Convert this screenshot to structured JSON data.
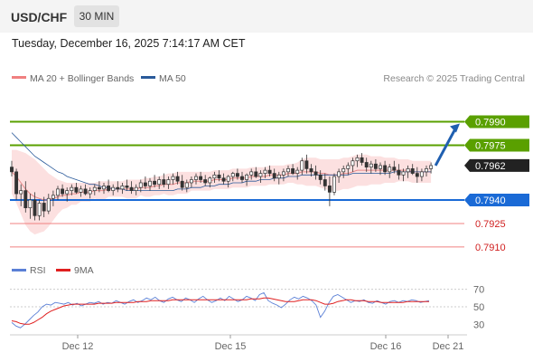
{
  "header": {
    "symbol": "USD/CHF",
    "timeframe": "30 MIN",
    "datetime": "Tuesday, December 16, 2025 7:14:17 AM CET"
  },
  "legend": [
    {
      "name": "MA 20 + Bollinger Bands",
      "color": "#f08080"
    },
    {
      "name": "MA 50",
      "color": "#2a5a9a"
    }
  ],
  "attribution": "Research © 2025 Trading Central",
  "rsi_legend": [
    {
      "name": "RSI",
      "color": "#5b80d6"
    },
    {
      "name": "9MA",
      "color": "#e02020"
    }
  ],
  "colors": {
    "green": "#5aa000",
    "blue": "#1a6ad6",
    "red_level": "#f08080",
    "last": "#222222",
    "arrow": "#1f5fb0"
  },
  "chart_data": [
    {
      "type": "candlestick",
      "title": "",
      "ylim": [
        0.7903,
        0.8003
      ],
      "levels": [
        {
          "value": 0.799,
          "label": "0.7990",
          "style": "green-line-tag"
        },
        {
          "value": 0.7975,
          "label": "0.7975",
          "style": "green-line-tag"
        },
        {
          "value": 0.7962,
          "label": "0.7962",
          "style": "last-price-tag"
        },
        {
          "value": 0.794,
          "label": "0.7940",
          "style": "blue-line-tag"
        },
        {
          "value": 0.7925,
          "label": "0.7925",
          "style": "red-line-text"
        },
        {
          "value": 0.791,
          "label": "0.7910",
          "style": "red-line-text"
        }
      ],
      "candles": [
        [
          0.7961,
          0.7965,
          0.7955,
          0.7958
        ],
        [
          0.7958,
          0.796,
          0.794,
          0.7944
        ],
        [
          0.7944,
          0.795,
          0.7936,
          0.7946
        ],
        [
          0.7946,
          0.7952,
          0.7932,
          0.7935
        ],
        [
          0.7935,
          0.7944,
          0.7928,
          0.794
        ],
        [
          0.794,
          0.7945,
          0.7927,
          0.793
        ],
        [
          0.793,
          0.794,
          0.7927,
          0.7938
        ],
        [
          0.7938,
          0.7942,
          0.7929,
          0.7933
        ],
        [
          0.7933,
          0.7944,
          0.7931,
          0.7941
        ],
        [
          0.7941,
          0.7946,
          0.7936,
          0.7943
        ],
        [
          0.7943,
          0.7949,
          0.794,
          0.7947
        ],
        [
          0.7947,
          0.795,
          0.7942,
          0.7944
        ],
        [
          0.7944,
          0.7948,
          0.7939,
          0.7946
        ],
        [
          0.7946,
          0.795,
          0.7943,
          0.7948
        ],
        [
          0.7948,
          0.7951,
          0.7944,
          0.7945
        ],
        [
          0.7945,
          0.7949,
          0.7942,
          0.7947
        ],
        [
          0.7947,
          0.795,
          0.7943,
          0.7944
        ],
        [
          0.7944,
          0.7948,
          0.7941,
          0.7946
        ],
        [
          0.7946,
          0.795,
          0.7943,
          0.7948
        ],
        [
          0.7948,
          0.7952,
          0.7945,
          0.7947
        ],
        [
          0.7947,
          0.7951,
          0.7944,
          0.7949
        ],
        [
          0.7949,
          0.7953,
          0.7945,
          0.7946
        ],
        [
          0.7946,
          0.795,
          0.7943,
          0.7948
        ],
        [
          0.7948,
          0.7952,
          0.7945,
          0.7947
        ],
        [
          0.7947,
          0.7951,
          0.7944,
          0.7949
        ],
        [
          0.7949,
          0.7953,
          0.7946,
          0.7948
        ],
        [
          0.7948,
          0.7952,
          0.7944,
          0.7946
        ],
        [
          0.7946,
          0.795,
          0.7943,
          0.7948
        ],
        [
          0.7948,
          0.7953,
          0.7945,
          0.7951
        ],
        [
          0.7951,
          0.7955,
          0.7947,
          0.7949
        ],
        [
          0.7949,
          0.7954,
          0.7946,
          0.7952
        ],
        [
          0.7952,
          0.7956,
          0.7948,
          0.795
        ],
        [
          0.795,
          0.7955,
          0.7947,
          0.7953
        ],
        [
          0.7953,
          0.7957,
          0.7948,
          0.795
        ],
        [
          0.795,
          0.7955,
          0.7947,
          0.7953
        ],
        [
          0.7953,
          0.7957,
          0.795,
          0.7955
        ],
        [
          0.7955,
          0.7958,
          0.795,
          0.7952
        ],
        [
          0.7952,
          0.7956,
          0.7946,
          0.7948
        ],
        [
          0.7948,
          0.7953,
          0.7945,
          0.7951
        ],
        [
          0.7951,
          0.7955,
          0.7948,
          0.7953
        ],
        [
          0.7953,
          0.7957,
          0.795,
          0.7955
        ],
        [
          0.7955,
          0.7958,
          0.7951,
          0.7953
        ],
        [
          0.7953,
          0.7956,
          0.7949,
          0.7951
        ],
        [
          0.7951,
          0.7955,
          0.7948,
          0.7954
        ],
        [
          0.7954,
          0.7958,
          0.7951,
          0.7956
        ],
        [
          0.7956,
          0.7959,
          0.7952,
          0.7954
        ],
        [
          0.7954,
          0.7957,
          0.795,
          0.7952
        ],
        [
          0.7952,
          0.7956,
          0.7948,
          0.7955
        ],
        [
          0.7955,
          0.7958,
          0.7952,
          0.7957
        ],
        [
          0.7957,
          0.796,
          0.7953,
          0.7955
        ],
        [
          0.7955,
          0.7958,
          0.7951,
          0.7953
        ],
        [
          0.7953,
          0.7957,
          0.7949,
          0.7956
        ],
        [
          0.7956,
          0.796,
          0.7953,
          0.7958
        ],
        [
          0.7958,
          0.7961,
          0.7954,
          0.7955
        ],
        [
          0.7955,
          0.7959,
          0.7951,
          0.7957
        ],
        [
          0.7957,
          0.7961,
          0.7954,
          0.7959
        ],
        [
          0.7959,
          0.7962,
          0.7955,
          0.7957
        ],
        [
          0.7957,
          0.796,
          0.7952,
          0.7954
        ],
        [
          0.7954,
          0.7958,
          0.795,
          0.7956
        ],
        [
          0.7956,
          0.796,
          0.7952,
          0.7958
        ],
        [
          0.7958,
          0.7962,
          0.7955,
          0.796
        ],
        [
          0.796,
          0.7963,
          0.7956,
          0.7957
        ],
        [
          0.7957,
          0.7961,
          0.7953,
          0.7959
        ],
        [
          0.7959,
          0.7967,
          0.7956,
          0.7965
        ],
        [
          0.7965,
          0.7969,
          0.7957,
          0.796
        ],
        [
          0.796,
          0.7963,
          0.7955,
          0.7958
        ],
        [
          0.7958,
          0.7962,
          0.7953,
          0.7956
        ],
        [
          0.7956,
          0.7959,
          0.795,
          0.7953
        ],
        [
          0.7953,
          0.7957,
          0.7946,
          0.7949
        ],
        [
          0.7949,
          0.7955,
          0.7936,
          0.7945
        ],
        [
          0.7945,
          0.7957,
          0.7943,
          0.7955
        ],
        [
          0.7955,
          0.796,
          0.7951,
          0.7958
        ],
        [
          0.7958,
          0.7962,
          0.7954,
          0.796
        ],
        [
          0.796,
          0.7964,
          0.7956,
          0.7962
        ],
        [
          0.7962,
          0.7967,
          0.7958,
          0.7965
        ],
        [
          0.7965,
          0.7969,
          0.7961,
          0.7967
        ],
        [
          0.7967,
          0.797,
          0.7962,
          0.7964
        ],
        [
          0.7964,
          0.7967,
          0.7958,
          0.7961
        ],
        [
          0.7961,
          0.7965,
          0.7957,
          0.7963
        ],
        [
          0.7963,
          0.7966,
          0.7958,
          0.796
        ],
        [
          0.796,
          0.7964,
          0.7956,
          0.7962
        ],
        [
          0.7962,
          0.7965,
          0.7956,
          0.7958
        ],
        [
          0.7958,
          0.7963,
          0.7954,
          0.7961
        ],
        [
          0.7961,
          0.7965,
          0.7957,
          0.7959
        ],
        [
          0.7959,
          0.7963,
          0.7953,
          0.7956
        ],
        [
          0.7956,
          0.796,
          0.7952,
          0.7958
        ],
        [
          0.7958,
          0.7962,
          0.7954,
          0.796
        ],
        [
          0.796,
          0.7963,
          0.7956,
          0.7957
        ],
        [
          0.7957,
          0.7961,
          0.7951,
          0.7955
        ],
        [
          0.7955,
          0.796,
          0.7952,
          0.7958
        ],
        [
          0.7958,
          0.7962,
          0.7955,
          0.796
        ],
        [
          0.796,
          0.7964,
          0.7957,
          0.7962
        ]
      ],
      "ma20": [
        0.7958,
        0.7955,
        0.7951,
        0.7947,
        0.7944,
        0.7942,
        0.7941,
        0.794,
        0.794,
        0.7941,
        0.7942,
        0.7943,
        0.7943,
        0.7944,
        0.7944,
        0.7945,
        0.7945,
        0.7945,
        0.7946,
        0.7946,
        0.7946,
        0.7947,
        0.7947,
        0.7947,
        0.7947,
        0.7947,
        0.7947,
        0.7947,
        0.7948,
        0.7948,
        0.7948,
        0.7949,
        0.7949,
        0.795,
        0.795,
        0.795,
        0.7951,
        0.7951,
        0.7951,
        0.7952,
        0.7952,
        0.7952,
        0.7952,
        0.7952,
        0.7953,
        0.7953,
        0.7953,
        0.7953,
        0.7954,
        0.7954,
        0.7954,
        0.7954,
        0.7955,
        0.7955,
        0.7955,
        0.7955,
        0.7956,
        0.7956,
        0.7956,
        0.7956,
        0.7957,
        0.7957,
        0.7957,
        0.7958,
        0.7958,
        0.7958,
        0.7958,
        0.7957,
        0.7957,
        0.7956,
        0.7956,
        0.7956,
        0.7957,
        0.7957,
        0.7958,
        0.7959,
        0.7959,
        0.7959,
        0.7959,
        0.7959,
        0.7959,
        0.7959,
        0.7959,
        0.7959,
        0.7959,
        0.7959,
        0.7959,
        0.7958,
        0.7958,
        0.7958,
        0.7958,
        0.7958
      ],
      "bb_upper": [
        0.7972,
        0.7972,
        0.7971,
        0.797,
        0.7968,
        0.7966,
        0.7963,
        0.796,
        0.7957,
        0.7955,
        0.7953,
        0.7952,
        0.7951,
        0.7951,
        0.7951,
        0.7951,
        0.7951,
        0.7951,
        0.7951,
        0.7952,
        0.7952,
        0.7952,
        0.7952,
        0.7952,
        0.7952,
        0.7953,
        0.7953,
        0.7953,
        0.7953,
        0.7954,
        0.7954,
        0.7955,
        0.7955,
        0.7956,
        0.7957,
        0.7957,
        0.7958,
        0.7958,
        0.7958,
        0.7958,
        0.7958,
        0.7958,
        0.7958,
        0.7958,
        0.7959,
        0.7959,
        0.7959,
        0.7959,
        0.796,
        0.796,
        0.796,
        0.796,
        0.7961,
        0.7961,
        0.7961,
        0.7961,
        0.7962,
        0.7962,
        0.7962,
        0.7962,
        0.7963,
        0.7963,
        0.7964,
        0.7966,
        0.7967,
        0.7967,
        0.7967,
        0.7966,
        0.7966,
        0.7966,
        0.7966,
        0.7966,
        0.7967,
        0.7967,
        0.7968,
        0.7969,
        0.7969,
        0.7969,
        0.7968,
        0.7968,
        0.7968,
        0.7967,
        0.7967,
        0.7967,
        0.7966,
        0.7966,
        0.7966,
        0.7965,
        0.7965,
        0.7965,
        0.7965,
        0.7965
      ],
      "bb_lower": [
        0.7944,
        0.7938,
        0.7931,
        0.7924,
        0.792,
        0.7918,
        0.7919,
        0.792,
        0.7923,
        0.7927,
        0.7931,
        0.7934,
        0.7935,
        0.7937,
        0.7937,
        0.7939,
        0.7939,
        0.7939,
        0.7941,
        0.794,
        0.794,
        0.7942,
        0.7942,
        0.7942,
        0.7942,
        0.7941,
        0.7941,
        0.7941,
        0.7943,
        0.7942,
        0.7942,
        0.7943,
        0.7943,
        0.7944,
        0.7943,
        0.7943,
        0.7944,
        0.7944,
        0.7944,
        0.7946,
        0.7946,
        0.7946,
        0.7946,
        0.7946,
        0.7947,
        0.7947,
        0.7947,
        0.7947,
        0.7948,
        0.7948,
        0.7948,
        0.7948,
        0.7949,
        0.7949,
        0.7949,
        0.7949,
        0.795,
        0.795,
        0.795,
        0.795,
        0.7951,
        0.7951,
        0.795,
        0.795,
        0.7949,
        0.7949,
        0.7949,
        0.7948,
        0.7947,
        0.7946,
        0.7946,
        0.7946,
        0.7947,
        0.7947,
        0.7948,
        0.7949,
        0.7949,
        0.7949,
        0.795,
        0.795,
        0.795,
        0.7951,
        0.7951,
        0.7951,
        0.7952,
        0.7952,
        0.7952,
        0.7951,
        0.7951,
        0.7951,
        0.7951,
        0.7951
      ],
      "ma50": [
        0.7983,
        0.798,
        0.7977,
        0.7974,
        0.7971,
        0.7968,
        0.7966,
        0.7964,
        0.7962,
        0.796,
        0.7958,
        0.7957,
        0.7955,
        0.7954,
        0.7953,
        0.7952,
        0.7951,
        0.795,
        0.795,
        0.7949,
        0.7948,
        0.7948,
        0.7947,
        0.7947,
        0.7947,
        0.7946,
        0.7946,
        0.7946,
        0.7946,
        0.7946,
        0.7946,
        0.7946,
        0.7946,
        0.7946,
        0.7946,
        0.7946,
        0.7947,
        0.7947,
        0.7947,
        0.7948,
        0.7948,
        0.7948,
        0.7949,
        0.7949,
        0.7949,
        0.795,
        0.795,
        0.795,
        0.7951,
        0.7951,
        0.7951,
        0.7952,
        0.7952,
        0.7952,
        0.7953,
        0.7953,
        0.7953,
        0.7954,
        0.7954,
        0.7954,
        0.7955,
        0.7955,
        0.7955,
        0.7956,
        0.7956,
        0.7956,
        0.7956,
        0.7956,
        0.7956,
        0.7956,
        0.7956,
        0.7956,
        0.7956,
        0.7956,
        0.7957,
        0.7957,
        0.7957,
        0.7957,
        0.7957,
        0.7957,
        0.7957,
        0.7957,
        0.7957,
        0.7958,
        0.7958,
        0.7958,
        0.7958,
        0.7958,
        0.7958,
        0.7958,
        0.7958,
        0.7958
      ],
      "forecast": {
        "from": 0.7962,
        "to": 0.799
      }
    },
    {
      "type": "line",
      "title": "",
      "y_ticks": [
        "70",
        "50",
        "30"
      ],
      "ylim": [
        20,
        80
      ],
      "dotted_levels": [
        70,
        50
      ],
      "x_tick_labels": [
        "Dec 12",
        "Dec 15",
        "Dec 16",
        "Dec 21"
      ],
      "series": [
        {
          "name": "RSI",
          "values": [
            32,
            28,
            26,
            30,
            35,
            40,
            44,
            50,
            53,
            52,
            55,
            54,
            53,
            55,
            52,
            54,
            51,
            53,
            55,
            54,
            56,
            53,
            55,
            54,
            57,
            55,
            53,
            56,
            58,
            55,
            57,
            60,
            58,
            61,
            57,
            55,
            59,
            61,
            58,
            56,
            60,
            58,
            55,
            59,
            62,
            58,
            55,
            57,
            60,
            57,
            62,
            59,
            56,
            58,
            62,
            60,
            57,
            64,
            66,
            57,
            54,
            52,
            49,
            53,
            58,
            61,
            59,
            62,
            60,
            57,
            52,
            38,
            45,
            55,
            62,
            64,
            61,
            58,
            55,
            57,
            56,
            58,
            55,
            54,
            57,
            55,
            53,
            56,
            57,
            55,
            57,
            56,
            58,
            57,
            55,
            56,
            57
          ]
        },
        {
          "name": "9MA",
          "values": [
            34,
            33,
            31,
            30,
            30,
            32,
            35,
            38,
            42,
            45,
            47,
            49,
            51,
            52,
            53,
            53,
            53,
            53,
            53,
            53,
            54,
            54,
            54,
            54,
            55,
            55,
            55,
            55,
            55,
            56,
            56,
            56,
            57,
            57,
            57,
            57,
            57,
            58,
            58,
            58,
            58,
            58,
            58,
            58,
            58,
            58,
            58,
            58,
            58,
            58,
            58,
            58,
            58,
            58,
            58,
            59,
            59,
            59,
            60,
            60,
            59,
            58,
            57,
            56,
            56,
            56,
            57,
            58,
            58,
            58,
            57,
            55,
            53,
            53,
            54,
            56,
            57,
            58,
            58,
            57,
            57,
            57,
            56,
            56,
            56,
            55,
            55,
            55,
            55,
            55,
            55,
            56,
            56,
            56,
            56,
            56,
            56
          ]
        }
      ]
    }
  ]
}
